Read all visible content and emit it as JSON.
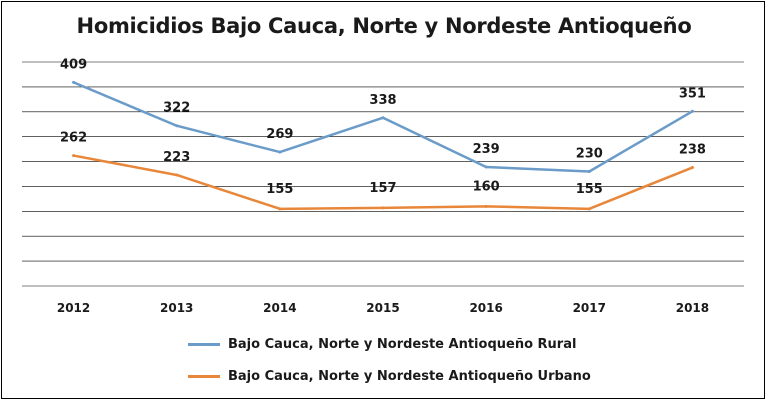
{
  "title": "Homicidios Bajo Cauca, Norte y Nordeste Antioqueño",
  "colors": {
    "rural": "#6b9bc8",
    "urbano": "#e8873a",
    "grid": "#000000"
  },
  "chart_data": {
    "type": "line",
    "title": "Homicidios Bajo Cauca, Norte y Nordeste Antioqueño",
    "xlabel": "",
    "ylabel": "",
    "categories": [
      "2012",
      "2013",
      "2014",
      "2015",
      "2016",
      "2017",
      "2018"
    ],
    "ylim": [
      0,
      450
    ],
    "grid": true,
    "legend_position": "bottom",
    "series": [
      {
        "name": "Bajo Cauca, Norte y Nordeste Antioqueño Rural",
        "values": [
          409,
          322,
          269,
          338,
          239,
          230,
          351
        ]
      },
      {
        "name": "Bajo Cauca, Norte y Nordeste Antioqueño Urbano",
        "values": [
          262,
          223,
          155,
          157,
          160,
          155,
          238
        ]
      }
    ]
  }
}
